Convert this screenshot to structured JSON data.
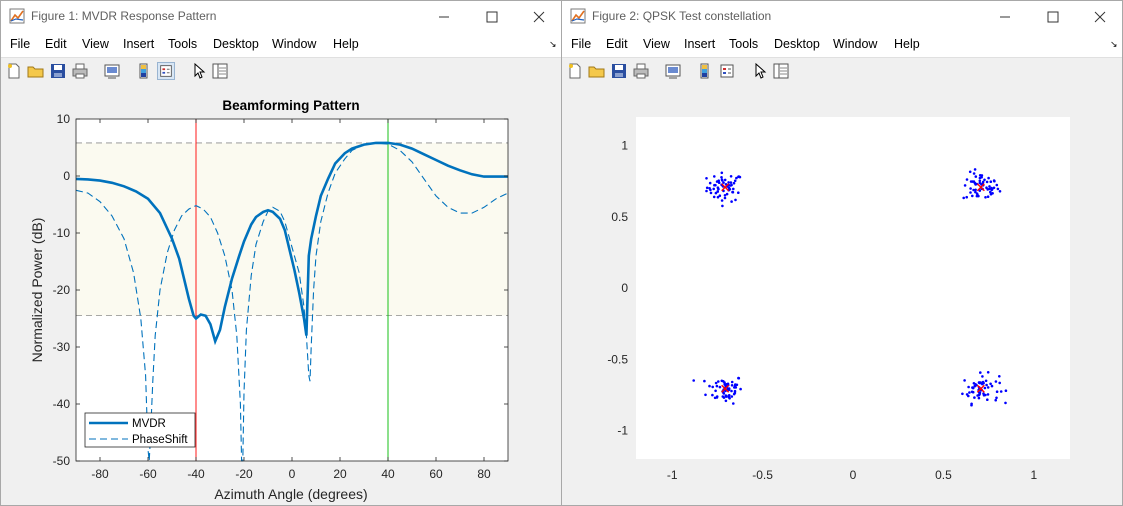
{
  "figure1": {
    "title": "Figure 1: MVDR Response Pattern",
    "menus": [
      "File",
      "Edit",
      "View",
      "Insert",
      "Tools",
      "Desktop",
      "Window",
      "Help"
    ],
    "toolbar_icons": [
      "new-figure-icon",
      "open-file-icon",
      "save-icon",
      "print-icon",
      "print-preview-icon",
      "colorbar-icon",
      "legend-icon",
      "pointer-icon",
      "property-inspector-icon"
    ],
    "chart": {
      "title": "Beamforming Pattern",
      "xlabel": "Azimuth Angle (degrees)",
      "ylabel": "Normalized Power (dB)",
      "xticks": [
        "-80",
        "-60",
        "-40",
        "-20",
        "0",
        "20",
        "40",
        "60",
        "80"
      ],
      "yticks": [
        "10",
        "0",
        "-10",
        "-20",
        "-30",
        "-40",
        "-50"
      ],
      "legend": [
        "MVDR",
        "PhaseShift"
      ]
    }
  },
  "figure2": {
    "title": "Figure 2: QPSK Test constellation",
    "menus": [
      "File",
      "Edit",
      "View",
      "Insert",
      "Tools",
      "Desktop",
      "Window",
      "Help"
    ],
    "toolbar_icons": [
      "new-figure-icon",
      "open-file-icon",
      "save-icon",
      "print-icon",
      "print-preview-icon",
      "colorbar-icon",
      "legend-icon",
      "pointer-icon",
      "property-inspector-icon"
    ],
    "chart": {
      "xticks": [
        "-1",
        "-0.5",
        "0",
        "0.5",
        "1"
      ],
      "yticks": [
        "1",
        "0.5",
        "0",
        "-0.5",
        "-1"
      ]
    }
  },
  "chart_data": [
    {
      "type": "line",
      "title": "Beamforming Pattern",
      "xlabel": "Azimuth Angle (degrees)",
      "ylabel": "Normalized Power (dB)",
      "xlim": [
        -90,
        90
      ],
      "ylim": [
        -50,
        10
      ],
      "grid": false,
      "legend_position": "bottom-left",
      "shaded_band_db": [
        -24.5,
        5.8
      ],
      "vertical_markers": [
        {
          "x": -40,
          "color": "#ff0000"
        },
        {
          "x": 40,
          "color": "#00bb00"
        }
      ],
      "series": [
        {
          "name": "MVDR",
          "style": "solid",
          "color": "#0072bd",
          "x": [
            -90,
            -85,
            -80,
            -75,
            -70,
            -65,
            -60,
            -55,
            -50,
            -47,
            -45,
            -43,
            -41,
            -40,
            -38,
            -36,
            -34,
            -32,
            -30,
            -28,
            -25,
            -22,
            -20,
            -17,
            -15,
            -12,
            -10,
            -8,
            -5,
            -3,
            -1,
            1,
            3,
            5,
            6,
            7,
            8,
            10,
            12,
            15,
            18,
            22,
            25,
            30,
            35,
            40,
            45,
            50,
            55,
            60,
            65,
            70,
            75,
            80,
            85,
            90
          ],
          "y": [
            -0.5,
            -0.6,
            -0.8,
            -1.2,
            -1.8,
            -2.7,
            -4,
            -6.5,
            -11,
            -14.5,
            -18,
            -21.5,
            -24.5,
            -25,
            -24.3,
            -24.5,
            -26,
            -29,
            -27,
            -23,
            -18,
            -14,
            -11.5,
            -8.5,
            -7.2,
            -6.3,
            -6,
            -6.3,
            -7.5,
            -9.5,
            -13,
            -16.5,
            -20.5,
            -25,
            -28,
            -14,
            -11,
            -7,
            -3.5,
            -0.5,
            2.2,
            4,
            4.8,
            5.5,
            5.8,
            5.8,
            5.5,
            4.8,
            3.8,
            2.8,
            1.8,
            1.0,
            0.3,
            -0.1,
            -0.1,
            -0.1
          ]
        },
        {
          "name": "PhaseShift",
          "style": "dashed",
          "color": "#0072bd",
          "x": [
            -90,
            -85,
            -80,
            -75,
            -70,
            -66,
            -63,
            -61,
            -60,
            -59.5,
            -59,
            -58,
            -57,
            -55,
            -52,
            -49,
            -46,
            -43,
            -40,
            -37,
            -34,
            -31,
            -28,
            -25,
            -23,
            -21.5,
            -21,
            -20.5,
            -20,
            -19,
            -17,
            -15,
            -12,
            -10,
            -8,
            -5,
            -3,
            -1,
            1,
            3,
            5,
            6,
            7,
            7.5,
            8,
            9,
            10,
            12,
            15,
            18,
            22,
            25,
            30,
            35,
            40,
            45,
            50,
            55,
            60,
            65,
            70,
            75,
            80,
            85,
            90
          ],
          "y": [
            -2.5,
            -3,
            -4.5,
            -7,
            -11,
            -17,
            -25,
            -35,
            -48,
            -50,
            -46,
            -36,
            -28,
            -20,
            -13.5,
            -9.5,
            -7,
            -5.8,
            -5.2,
            -5.8,
            -7.2,
            -10,
            -14,
            -20,
            -28,
            -40,
            -50,
            -50,
            -38,
            -27,
            -17.5,
            -12,
            -8,
            -6.2,
            -5.5,
            -6.2,
            -8,
            -11,
            -14,
            -17,
            -23,
            -28,
            -35,
            -36,
            -30,
            -20,
            -14,
            -8,
            -3,
            0.5,
            3,
            4.5,
            5.5,
            5.8,
            5.6,
            4.5,
            2.5,
            -0.5,
            -3.5,
            -5.5,
            -6.5,
            -6.5,
            -5.5,
            -4,
            -3
          ]
        }
      ]
    },
    {
      "type": "scatter",
      "title": "",
      "xlabel": "",
      "ylabel": "",
      "xlim": [
        -1.2,
        1.2
      ],
      "ylim": [
        -1.2,
        1.2
      ],
      "grid": false,
      "series": [
        {
          "name": "",
          "color": "#0000ff",
          "marker": "dot",
          "description_points": "noisy received symbols around each QPSK point, ~60 per cluster"
        },
        {
          "name": "",
          "color": "#ff0000",
          "marker": "x",
          "x": [
            -0.707,
            0.707,
            -0.707,
            0.707
          ],
          "y": [
            0.707,
            0.707,
            -0.707,
            -0.707
          ]
        }
      ],
      "clusters": [
        {
          "cx": -0.707,
          "cy": 0.707
        },
        {
          "cx": 0.707,
          "cy": 0.707
        },
        {
          "cx": -0.707,
          "cy": -0.707
        },
        {
          "cx": 0.707,
          "cy": -0.707
        }
      ]
    }
  ]
}
